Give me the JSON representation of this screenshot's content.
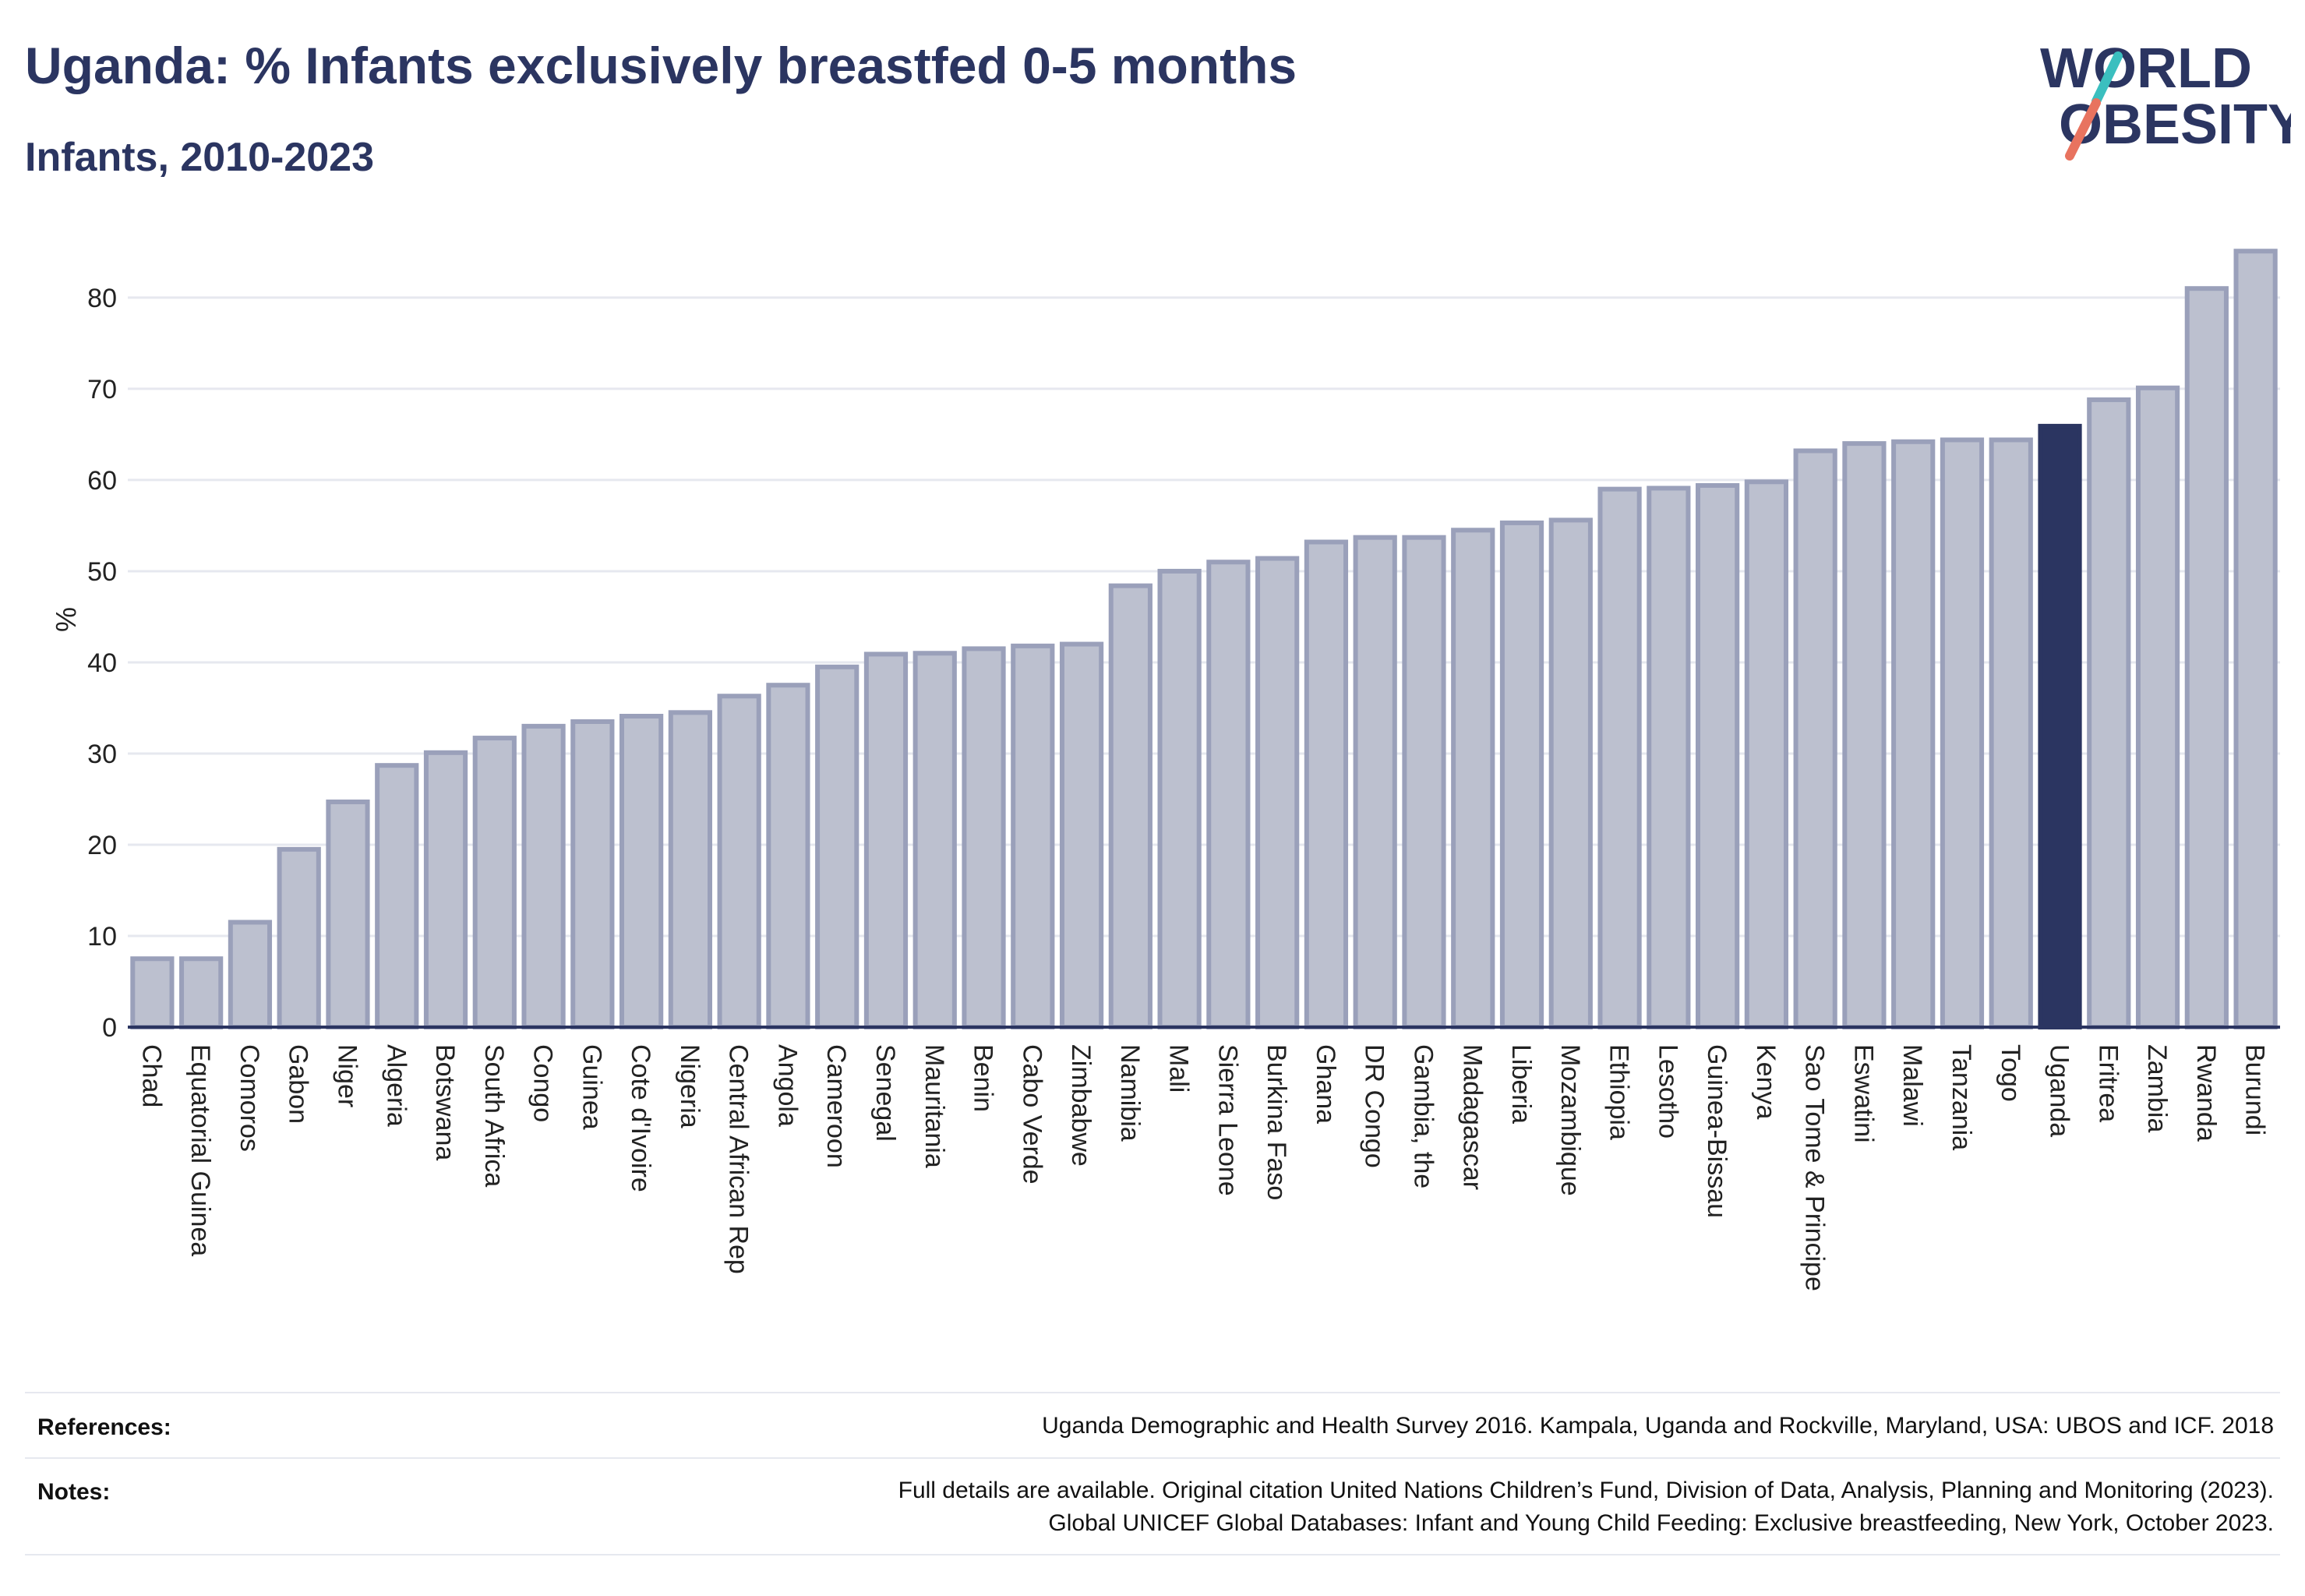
{
  "header": {
    "title": "Uganda: % Infants exclusively breastfed 0-5 months",
    "subtitle": "Infants, 2010-2023"
  },
  "logo": {
    "line1": "WORLD",
    "line2": "OBESITY",
    "accent_teal": "#3bbfbf",
    "accent_coral": "#e8735f"
  },
  "colors": {
    "bar": "#bcc0cf",
    "bar_stroke": "#9aa0ba",
    "highlight": "#2b3561",
    "grid": "#e6e8ef",
    "axis": "#2b3561"
  },
  "chart_data": {
    "type": "bar",
    "ylabel": "%",
    "xlabel": "",
    "ylim": [
      0,
      87
    ],
    "yticks": [
      0,
      10,
      20,
      30,
      40,
      50,
      60,
      70,
      80
    ],
    "grid": true,
    "highlight": "Uganda",
    "categories": [
      "Chad",
      "Equatorial Guinea",
      "Comoros",
      "Gabon",
      "Niger",
      "Algeria",
      "Botswana",
      "South Africa",
      "Congo",
      "Guinea",
      "Cote d'Ivoire",
      "Nigeria",
      "Central African Rep",
      "Angola",
      "Cameroon",
      "Senegal",
      "Mauritania",
      "Benin",
      "Cabo Verde",
      "Zimbabwe",
      "Namibia",
      "Mali",
      "Sierra Leone",
      "Burkina Faso",
      "Ghana",
      "DR Congo",
      "Gambia, the",
      "Madagascar",
      "Liberia",
      "Mozambique",
      "Ethiopia",
      "Lesotho",
      "Guinea-Bissau",
      "Kenya",
      "Sao Tome & Principe",
      "Eswatini",
      "Malawi",
      "Tanzania",
      "Togo",
      "Uganda",
      "Eritrea",
      "Zambia",
      "Rwanda",
      "Burundi"
    ],
    "values": [
      7.5,
      7.5,
      11.5,
      19.5,
      24.7,
      28.7,
      30.1,
      31.7,
      33.0,
      33.5,
      34.1,
      34.5,
      36.3,
      37.5,
      39.5,
      40.9,
      41.0,
      41.5,
      41.8,
      42.0,
      48.4,
      50.0,
      51.0,
      51.4,
      53.2,
      53.7,
      53.7,
      54.5,
      55.3,
      55.6,
      59.0,
      59.1,
      59.4,
      59.8,
      63.2,
      64.0,
      64.2,
      64.4,
      64.4,
      65.9,
      68.8,
      70.1,
      81.0,
      85.1
    ]
  },
  "footer": {
    "references_label": "References:",
    "references_text": "Uganda Demographic and Health Survey 2016. Kampala, Uganda and Rockville, Maryland, USA: UBOS and ICF. 2018",
    "notes_label": "Notes:",
    "notes_line1": "Full details are available. Original citation United Nations Children’s Fund, Division of Data, Analysis, Planning and Monitoring (2023).",
    "notes_line2": "Global UNICEF Global Databases: Infant and Young Child Feeding: Exclusive breastfeeding, New York, October 2023."
  }
}
